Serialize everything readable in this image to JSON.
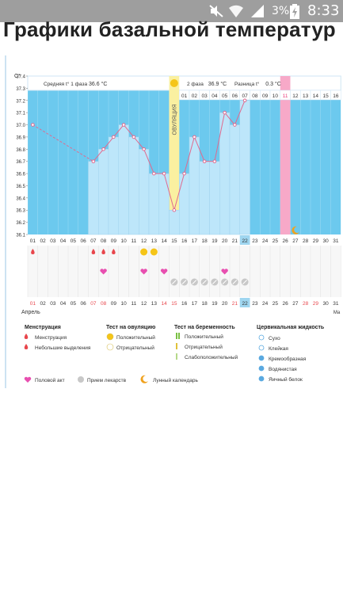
{
  "status_bar": {
    "battery_percent": "3%",
    "time": "8:33",
    "icons": [
      "mute-icon",
      "wifi-icon",
      "signal-icon",
      "battery-charging-icon"
    ]
  },
  "page": {
    "title": "Графики базальной температур"
  },
  "chart_header": {
    "phase1_label": "Средняя t° 1 фаза",
    "phase1_value": "36.6 °C",
    "phase2_label": "2 фаза",
    "phase2_value": "36.9 °C",
    "diff_label": "Разница t°",
    "diff_value": "0.3 °C",
    "ovulation_label": "ОВУЛЯЦИЯ"
  },
  "chart_data": {
    "type": "line",
    "ylabel": "C°",
    "ylim": [
      36.1,
      37.4
    ],
    "yticks": [
      "36.1",
      "36.2",
      "36.3",
      "36.4",
      "36.5",
      "36.6",
      "36.7",
      "36.8",
      "36.9",
      "37.0",
      "37.1",
      "37.2",
      "37.3",
      "37.4"
    ],
    "days_bottom": [
      "01",
      "02",
      "03",
      "04",
      "05",
      "06",
      "07",
      "08",
      "09",
      "10",
      "11",
      "12",
      "13",
      "14",
      "15",
      "16",
      "17",
      "18",
      "19",
      "20",
      "21",
      "22",
      "23",
      "24",
      "25",
      "26",
      "27",
      "28",
      "29",
      "30",
      "31"
    ],
    "days_top": [
      "",
      "",
      "",
      "",
      "",
      "",
      "",
      "",
      "",
      "",
      "",
      "",
      "",
      "",
      "",
      "01",
      "02",
      "03",
      "04",
      "05",
      "06",
      "07",
      "08",
      "09",
      "10",
      "11",
      "12",
      "13",
      "14",
      "15",
      "16"
    ],
    "month_start_label": "Апрель",
    "month_end_label": "Ма",
    "temperatures": [
      37.0,
      null,
      null,
      null,
      null,
      null,
      36.7,
      36.8,
      36.9,
      37.0,
      36.9,
      36.8,
      36.6,
      36.6,
      36.3,
      36.6,
      36.9,
      36.7,
      36.7,
      37.1,
      37.0,
      37.2,
      null,
      null,
      null,
      null,
      null,
      null,
      null,
      null,
      null
    ],
    "ovulation_day": "15",
    "today_day": "22",
    "pink_column_day": "26"
  },
  "events": {
    "menstruation_days": [
      "01",
      "07",
      "08",
      "09"
    ],
    "ovulation_positive_days": [
      "12",
      "13"
    ],
    "intercourse_days": [
      "08",
      "12",
      "14",
      "20"
    ],
    "medication_days": [
      "15",
      "16",
      "17",
      "18",
      "19",
      "20",
      "21",
      "22"
    ],
    "moon_day": "27",
    "red_bottom_days": [
      "01",
      "07",
      "08",
      "14",
      "15",
      "21",
      "28",
      "29"
    ]
  },
  "legend": {
    "menstruation_title": "Менструация",
    "menstruation_items": [
      "Менструация",
      "Небольшие выделения"
    ],
    "ovulation_test_title": "Тест на овуляцию",
    "ovulation_test_items": [
      "Положительный",
      "Отрицательный"
    ],
    "pregnancy_test_title": "Тест на беременность",
    "pregnancy_test_items": [
      "Положительный",
      "Отрицательный",
      "Слабоположительный"
    ],
    "cervical_title": "Цервикальная жидкость",
    "cervical_items": [
      "Сухо",
      "Клейкая",
      "Кремообразная",
      "Водянистая",
      "Яичный белок"
    ],
    "bottom_items": [
      "Половой акт",
      "Прием лекарств",
      "Лунный календарь"
    ]
  },
  "colors": {
    "chart_bg": "#6cc9ee",
    "bar_fill": "#bde6fa",
    "ovulation_band": "#faf0a0",
    "pink_band": "#f7a9c8",
    "line": "#e06a8f",
    "drop": "#e8464c",
    "heart": "#e84fb0",
    "ovulation_sun": "#f5c518"
  }
}
